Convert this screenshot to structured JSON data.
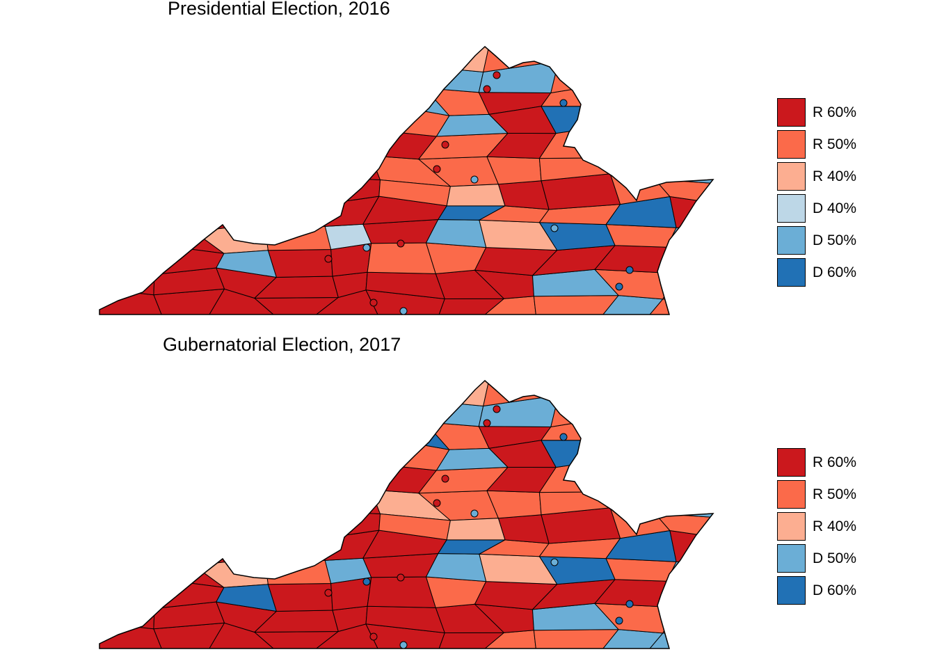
{
  "colors": {
    "R 60%": "#cb181d",
    "R 50%": "#fb6a4a",
    "R 40%": "#fcae91",
    "D 40%": "#bdd7e7",
    "D 50%": "#6baed6",
    "D 60%": "#2171b5"
  },
  "maps": [
    {
      "title": "Presidential Election, 2016",
      "legend": [
        "R 60%",
        "R 50%",
        "R 40%",
        "D 40%",
        "D 50%",
        "D 60%"
      ],
      "regions": [
        "R 60%",
        "R 60%",
        "R 60%",
        "R 60%",
        "R 60%",
        "R 60%",
        "R 60%",
        "R 60%",
        "R 60%",
        "R 60%",
        "R 60%",
        "R 60%",
        "R 60%",
        "R 60%",
        "R 60%",
        "R 60%",
        "R 60%",
        "R 60%",
        "R 60%",
        "R 60%",
        "R 60%",
        "R 60%",
        "R 60%",
        "R 50%",
        "R 40%",
        "D 50%",
        "R 60%",
        "R 60%",
        "R 60%",
        "R 60%",
        "R 60%",
        "R 60%",
        "R 60%",
        "R 60%",
        "R 60%",
        "R 60%",
        "R 60%",
        "R 60%",
        "R 50%",
        "R 50%",
        "R 50%",
        "R 60%",
        "R 60%",
        "R 60%",
        "R 60%",
        "R 60%",
        "R 50%",
        "R 60%",
        "R 60%",
        "D 40%",
        "R 60%",
        "R 60%",
        "R 60%",
        "R 60%",
        "R 60%",
        "R 60%",
        "R 60%",
        "R 60%",
        "R 50%",
        "R 60%",
        "R 60%",
        "D 50%",
        "D 50%",
        "R 60%",
        "R 50%",
        "R 50%",
        "R 50%",
        "R 60%",
        "R 60%",
        "R 60%",
        "R 50%",
        "R 50%",
        "D 50%",
        "D 50%",
        "R 50%",
        "D 50%",
        "D 60%",
        "R 50%",
        "R 40%",
        "R 50%",
        "R 50%",
        "R 60%",
        "R 60%",
        "R 50%",
        "D 50%",
        "D 50%",
        "R 40%",
        "R 40%",
        "R 50%",
        "R 60%",
        "R 50%",
        "R 50%",
        "D 50%",
        "R 60%",
        "R 60%",
        "R 60%",
        "R 60%",
        "D 50%",
        "D 60%",
        "R 50%",
        "R 50%",
        "R 60%",
        "R 50%",
        "R 50%",
        "D 50%",
        "D 60%",
        "R 50%",
        "R 50%",
        "R 60%",
        "R 50%",
        "R 50%",
        "R 40%",
        "D 60%",
        "R 50%",
        "R 50%",
        "R 50%",
        "D 50%",
        "R 40%",
        "R 50%",
        "R 40%",
        "R 50%",
        "R 40%",
        "D 50%",
        "R 60%",
        "R 60%",
        "R 50%",
        "D 50%",
        "R 40%",
        "R 50%",
        "R 50%",
        "R 60%",
        "R 50%"
      ],
      "cities": [
        "R 60%",
        "R 60%",
        "R 60%",
        "R 60%",
        "D 50%",
        "D 50%",
        "R 60%",
        "D 60%",
        "D 50%",
        "R 60%",
        "R 60%",
        "D 50%",
        "D 60%",
        "D 60%"
      ]
    },
    {
      "title": "Gubernatorial Election, 2017",
      "legend": [
        "R 60%",
        "R 50%",
        "R 40%",
        "D 50%",
        "D 60%"
      ],
      "regions": [
        "R 60%",
        "R 60%",
        "R 60%",
        "R 60%",
        "R 60%",
        "R 60%",
        "R 60%",
        "R 60%",
        "R 60%",
        "R 60%",
        "R 60%",
        "R 60%",
        "R 60%",
        "R 60%",
        "R 60%",
        "R 60%",
        "R 60%",
        "R 60%",
        "R 60%",
        "R 60%",
        "R 60%",
        "R 60%",
        "R 60%",
        "R 50%",
        "R 40%",
        "D 60%",
        "R 60%",
        "R 60%",
        "R 60%",
        "R 60%",
        "R 60%",
        "R 60%",
        "R 60%",
        "R 60%",
        "R 60%",
        "R 60%",
        "R 60%",
        "R 60%",
        "R 50%",
        "R 60%",
        "R 50%",
        "R 60%",
        "R 60%",
        "R 60%",
        "R 60%",
        "R 60%",
        "R 50%",
        "R 60%",
        "R 60%",
        "D 50%",
        "R 60%",
        "R 60%",
        "R 60%",
        "R 60%",
        "R 60%",
        "R 60%",
        "R 60%",
        "R 60%",
        "R 60%",
        "R 60%",
        "R 60%",
        "D 50%",
        "D 50%",
        "R 60%",
        "R 50%",
        "R 40%",
        "R 50%",
        "R 60%",
        "R 60%",
        "R 60%",
        "R 50%",
        "R 50%",
        "D 50%",
        "D 60%",
        "R 50%",
        "D 50%",
        "D 60%",
        "R 50%",
        "R 40%",
        "R 50%",
        "R 50%",
        "R 60%",
        "R 60%",
        "R 50%",
        "D 50%",
        "D 50%",
        "R 40%",
        "R 40%",
        "R 50%",
        "R 60%",
        "R 50%",
        "R 50%",
        "D 50%",
        "R 60%",
        "R 60%",
        "R 60%",
        "R 60%",
        "D 50%",
        "D 60%",
        "R 50%",
        "R 50%",
        "R 60%",
        "R 50%",
        "R 50%",
        "D 50%",
        "D 60%",
        "R 50%",
        "R 50%",
        "R 60%",
        "R 50%",
        "R 50%",
        "R 40%",
        "D 60%",
        "R 50%",
        "D 50%",
        "D 50%",
        "D 50%",
        "R 50%",
        "R 50%",
        "R 40%",
        "R 50%",
        "D 50%",
        "D 50%",
        "R 60%",
        "R 60%",
        "R 50%",
        "D 50%",
        "R 50%",
        "R 50%",
        "D 50%",
        "R 60%",
        "R 50%"
      ],
      "cities": [
        "R 60%",
        "R 60%",
        "R 60%",
        "R 60%",
        "D 50%",
        "D 60%",
        "R 60%",
        "D 60%",
        "D 50%",
        "R 60%",
        "R 60%",
        "D 50%",
        "D 60%",
        "D 60%"
      ]
    }
  ]
}
